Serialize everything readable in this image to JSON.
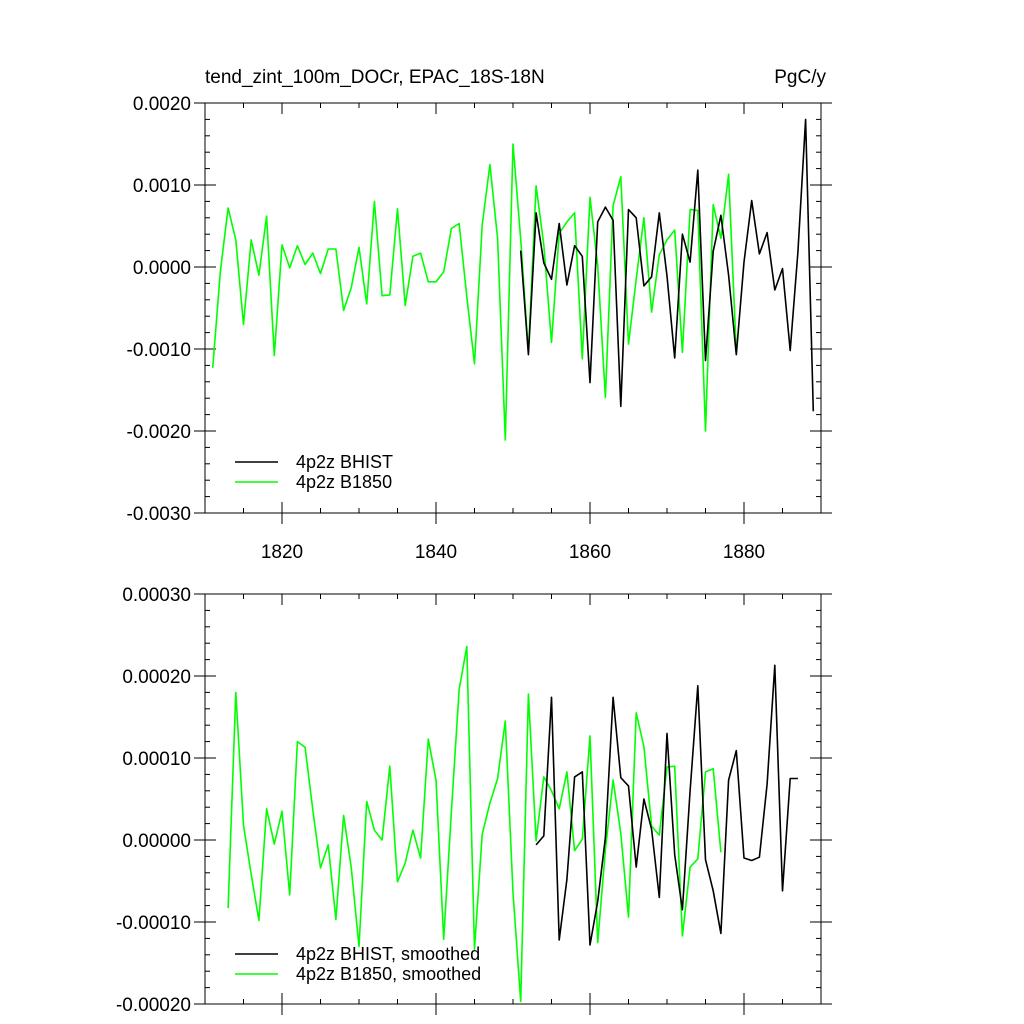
{
  "chart_data": [
    {
      "type": "line",
      "title": "tend_zint_100m_DOCr, EPAC_18S-18N",
      "units": "PgC/y",
      "xlim": [
        1810,
        1890
      ],
      "ylim": [
        -0.003,
        0.002
      ],
      "x_ticks": [
        1820,
        1840,
        1860,
        1880
      ],
      "x_tick_labels": [
        "1820",
        "1840",
        "1860",
        "1880"
      ],
      "y_ticks": [
        -0.003,
        -0.002,
        -0.001,
        0.0,
        0.001,
        0.002
      ],
      "y_tick_labels": [
        "-0.0030",
        "-0.0020",
        "-0.0010",
        "0.0000",
        "0.0010",
        "0.0020"
      ],
      "legend": "bottom-left",
      "series": [
        {
          "name": "4p2z BHIST",
          "color": "#000000",
          "x": [
            1851,
            1852,
            1853,
            1854,
            1855,
            1856,
            1857,
            1858,
            1859,
            1860,
            1861,
            1862,
            1863,
            1864,
            1865,
            1866,
            1867,
            1868,
            1869,
            1870,
            1871,
            1872,
            1873,
            1874,
            1875,
            1876,
            1877,
            1878,
            1879,
            1880,
            1881,
            1882,
            1883,
            1884,
            1885,
            1886,
            1887,
            1888,
            1889
          ],
          "y": [
            0.0002,
            -0.00107,
            0.00066,
            5e-05,
            -0.00015,
            0.00053,
            -0.00022,
            0.00026,
            0.00013,
            -0.00141,
            0.00055,
            0.00073,
            0.00057,
            -0.0017,
            0.0007,
            0.0006,
            -0.00023,
            -0.00012,
            0.00066,
            -0.00011,
            -0.00111,
            0.0004,
            6e-05,
            0.00118,
            -0.00114,
            0.00019,
            0.00063,
            -0.0001,
            -0.00107,
            6e-05,
            0.00081,
            0.00016,
            0.00042,
            -0.00028,
            -2e-05,
            -0.00102,
            0.00018,
            0.0018,
            -0.00176
          ]
        },
        {
          "name": "4p2z B1850",
          "color": "#00ff00",
          "x": [
            1811,
            1812,
            1813,
            1814,
            1815,
            1816,
            1817,
            1818,
            1819,
            1820,
            1821,
            1822,
            1823,
            1824,
            1825,
            1826,
            1827,
            1828,
            1829,
            1830,
            1831,
            1832,
            1833,
            1834,
            1835,
            1836,
            1837,
            1838,
            1839,
            1840,
            1841,
            1842,
            1843,
            1844,
            1845,
            1846,
            1847,
            1848,
            1849,
            1850,
            1851,
            1852,
            1853,
            1854,
            1855,
            1856,
            1857,
            1858,
            1859,
            1860,
            1861,
            1862,
            1863,
            1864,
            1865,
            1866,
            1867,
            1868,
            1869,
            1870,
            1871,
            1872,
            1873,
            1874,
            1875,
            1876,
            1877,
            1878,
            1879
          ],
          "y": [
            -0.00123,
            -5e-05,
            0.00072,
            0.00033,
            -0.0007,
            0.00033,
            -0.0001,
            0.00062,
            -0.00108,
            0.00027,
            -1e-05,
            0.00026,
            3e-05,
            0.00017,
            -8e-05,
            0.00022,
            0.00022,
            -0.00053,
            -0.00025,
            0.00024,
            -0.00045,
            0.0008,
            -0.00035,
            -0.00034,
            0.00071,
            -0.00047,
            0.00013,
            0.00017,
            -0.00018,
            -0.00018,
            -6e-05,
            0.00047,
            0.00053,
            -0.00036,
            -0.00118,
            0.00051,
            0.00125,
            0.00035,
            -0.00211,
            0.0015,
            0.00034,
            -0.00104,
            0.00099,
            0.00027,
            -0.00092,
            0.00041,
            0.00055,
            0.00066,
            -0.00112,
            0.00085,
            2e-05,
            -0.00159,
            0.00075,
            0.0011,
            -0.00094,
            -0.00015,
            0.0006,
            -0.00055,
            0.00015,
            0.00033,
            0.00045,
            -0.00104,
            0.0007,
            0.00069,
            -0.002,
            0.00076,
            0.00035,
            0.00113,
            -0.00104
          ]
        }
      ]
    },
    {
      "type": "line",
      "title": "",
      "xlim": [
        1810,
        1890
      ],
      "ylim": [
        -0.0002,
        0.0003
      ],
      "x_ticks": [
        1820,
        1840,
        1860,
        1880
      ],
      "y_ticks": [
        -0.0002,
        -0.0001,
        0.0,
        0.0001,
        0.0002,
        0.0003
      ],
      "y_tick_labels": [
        "-0.00020",
        "-0.00010",
        "0.00000",
        "0.00010",
        "0.00020",
        "0.00030"
      ],
      "legend": "bottom-left",
      "series": [
        {
          "name": "4p2z BHIST, smoothed",
          "color": "#000000",
          "x": [
            1853,
            1854,
            1855,
            1856,
            1857,
            1858,
            1859,
            1860,
            1861,
            1862,
            1863,
            1864,
            1865,
            1866,
            1867,
            1868,
            1869,
            1870,
            1871,
            1872,
            1873,
            1874,
            1875,
            1876,
            1877,
            1878,
            1879,
            1880,
            1881,
            1882,
            1883,
            1884,
            1885,
            1886,
            1887
          ],
          "y": [
            -6e-06,
            5e-06,
            0.000174,
            -0.000122,
            -4.8e-05,
            7.7e-05,
            8.3e-05,
            -0.000128,
            -7.5e-05,
            3e-06,
            0.000174,
            7.6e-05,
            6.6e-05,
            -3.3e-05,
            5e-05,
            1.3e-05,
            -7e-05,
            0.00013,
            -1.8e-05,
            -8.5e-05,
            6e-05,
            0.000188,
            -2.4e-05,
            -6.2e-05,
            -0.000114,
            7.3e-05,
            0.000109,
            -2.2e-05,
            -2.5e-05,
            -2.1e-05,
            6.8e-05,
            0.000213,
            -6.2e-05,
            7.5e-05,
            7.5e-05
          ]
        },
        {
          "name": "4p2z B1850, smoothed",
          "color": "#00ff00",
          "x": [
            1813,
            1814,
            1815,
            1816,
            1817,
            1818,
            1819,
            1820,
            1821,
            1822,
            1823,
            1824,
            1825,
            1826,
            1827,
            1828,
            1829,
            1830,
            1831,
            1832,
            1833,
            1834,
            1835,
            1836,
            1837,
            1838,
            1839,
            1840,
            1841,
            1842,
            1843,
            1844,
            1845,
            1846,
            1847,
            1848,
            1849,
            1850,
            1851,
            1852,
            1853,
            1854,
            1855,
            1856,
            1857,
            1858,
            1859,
            1860,
            1861,
            1862,
            1863,
            1864,
            1865,
            1866,
            1867,
            1868,
            1869,
            1870,
            1871,
            1872,
            1873,
            1874,
            1875,
            1876,
            1877
          ],
          "y": [
            -8.3e-05,
            0.00018,
            1.8e-05,
            -4.2e-05,
            -9.8e-05,
            3.8e-05,
            -5e-06,
            3.5e-05,
            -6.7e-05,
            0.00012,
            0.000113,
            3.7e-05,
            -3.4e-05,
            -6e-06,
            -9.7e-05,
            3e-05,
            -3.4e-05,
            -0.00013,
            4.7e-05,
            1.2e-05,
            -0.0,
            9e-05,
            -5.1e-05,
            -2.8e-05,
            1.2e-05,
            -2.2e-05,
            0.000123,
            7.3e-05,
            -0.000121,
            3.5e-05,
            0.000183,
            0.000236,
            -0.000133,
            7e-06,
            4.5e-05,
            7.5e-05,
            0.000145,
            -6.4e-05,
            -0.000197,
            0.000178,
            -1e-06,
            7.7e-05,
            6e-05,
            3.8e-05,
            8.3e-05,
            -1.3e-05,
            1e-06,
            0.000127,
            -0.000125,
            -1.2e-05,
            7.3e-05,
            8e-06,
            -9.4e-05,
            0.000155,
            0.000114,
            1.7e-05,
            6e-06,
            8.9e-05,
            9e-05,
            -0.000117,
            -3.3e-05,
            -2.3e-05,
            8.3e-05,
            8.7e-05,
            -1.5e-05
          ]
        }
      ]
    }
  ]
}
